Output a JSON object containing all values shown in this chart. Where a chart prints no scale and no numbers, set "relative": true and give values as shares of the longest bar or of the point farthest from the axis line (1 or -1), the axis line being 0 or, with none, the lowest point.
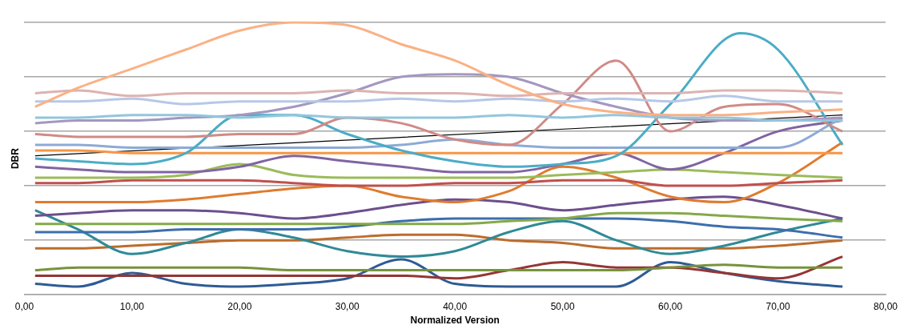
{
  "chart_data": {
    "type": "line",
    "xlabel": "Normalized Version",
    "ylabel": "DBR",
    "relative": true,
    "grid": "y",
    "legend": false,
    "marker": "none",
    "line_style": "solid",
    "xlim": [
      0,
      80
    ],
    "xticks": [
      {
        "value": 0,
        "label": "0,00"
      },
      {
        "value": 10,
        "label": "10,00"
      },
      {
        "value": 20,
        "label": "20,00"
      },
      {
        "value": 30,
        "label": "30,00"
      },
      {
        "value": 40,
        "label": "40,00"
      },
      {
        "value": 50,
        "label": "50,00"
      },
      {
        "value": 60,
        "label": "60,00"
      },
      {
        "value": 70,
        "label": "70,00"
      },
      {
        "value": 80,
        "label": "80,00"
      }
    ],
    "x": [
      1,
      5,
      10,
      15,
      20,
      25,
      30,
      35,
      40,
      45,
      50,
      55,
      60,
      65,
      70,
      76
    ],
    "series": [
      {
        "color": "#fab185",
        "values": [
          0.69,
          0.76,
          0.83,
          0.9,
          0.97,
          1.0,
          0.99,
          0.92,
          0.86,
          0.77,
          0.7,
          0.67,
          0.66,
          0.66,
          0.67,
          0.68
        ]
      },
      {
        "color": "#dcb3b1",
        "values": [
          0.74,
          0.75,
          0.73,
          0.74,
          0.74,
          0.74,
          0.75,
          0.74,
          0.74,
          0.73,
          0.74,
          0.74,
          0.74,
          0.75,
          0.75,
          0.74
        ]
      },
      {
        "color": "#b6c8e6",
        "values": [
          0.71,
          0.71,
          0.72,
          0.7,
          0.71,
          0.71,
          0.71,
          0.72,
          0.71,
          0.72,
          0.71,
          0.72,
          0.71,
          0.73,
          0.71,
          0.71
        ]
      },
      {
        "color": "#93c6dc",
        "values": [
          0.65,
          0.65,
          0.66,
          0.66,
          0.65,
          0.66,
          0.65,
          0.65,
          0.65,
          0.66,
          0.65,
          0.66,
          0.65,
          0.65,
          0.64,
          0.64
        ]
      },
      {
        "color": "#a497c0",
        "values": [
          0.63,
          0.64,
          0.64,
          0.65,
          0.66,
          0.69,
          0.74,
          0.8,
          0.81,
          0.8,
          0.74,
          0.69,
          0.65,
          0.64,
          0.64,
          0.65
        ]
      },
      {
        "color": "#d08b87",
        "values": [
          0.59,
          0.58,
          0.58,
          0.58,
          0.59,
          0.59,
          0.65,
          0.63,
          0.57,
          0.55,
          0.7,
          0.86,
          0.6,
          0.69,
          0.7,
          0.6
        ]
      },
      {
        "color": "#4bacc6",
        "x": [
          1,
          5,
          10,
          15,
          20,
          25,
          30,
          35,
          40,
          45,
          50,
          55,
          60,
          66.5,
          70,
          76
        ],
        "values": [
          0.5,
          0.49,
          0.48,
          0.52,
          0.66,
          0.66,
          0.59,
          0.53,
          0.49,
          0.47,
          0.48,
          0.51,
          0.7,
          0.96,
          0.9,
          0.55
        ]
      },
      {
        "color": "#8eaad6",
        "values": [
          0.55,
          0.55,
          0.54,
          0.54,
          0.54,
          0.54,
          0.54,
          0.55,
          0.57,
          0.55,
          0.54,
          0.54,
          0.54,
          0.54,
          0.54,
          0.65
        ]
      },
      {
        "color": "#f79646",
        "values": [
          0.53,
          0.53,
          0.52,
          0.52,
          0.52,
          0.52,
          0.52,
          0.52,
          0.52,
          0.52,
          0.52,
          0.52,
          0.52,
          0.52,
          0.52,
          0.52
        ]
      },
      {
        "color": "#000000",
        "x": [
          1,
          76
        ],
        "values": [
          0.51,
          0.66
        ]
      },
      {
        "color": "#8064a2",
        "values": [
          0.47,
          0.46,
          0.45,
          0.45,
          0.47,
          0.51,
          0.49,
          0.47,
          0.45,
          0.45,
          0.48,
          0.52,
          0.46,
          0.52,
          0.6,
          0.64
        ]
      },
      {
        "color": "#9bbb59",
        "values": [
          0.43,
          0.43,
          0.43,
          0.44,
          0.48,
          0.44,
          0.43,
          0.43,
          0.43,
          0.43,
          0.44,
          0.45,
          0.46,
          0.45,
          0.44,
          0.43
        ]
      },
      {
        "color": "#c0504d",
        "values": [
          0.41,
          0.41,
          0.42,
          0.42,
          0.42,
          0.41,
          0.4,
          0.4,
          0.41,
          0.41,
          0.42,
          0.42,
          0.4,
          0.4,
          0.41,
          0.42
        ]
      },
      {
        "color": "#e07b2e",
        "values": [
          0.34,
          0.34,
          0.34,
          0.35,
          0.37,
          0.39,
          0.4,
          0.36,
          0.34,
          0.38,
          0.47,
          0.43,
          0.36,
          0.34,
          0.41,
          0.56
        ]
      },
      {
        "color": "#6c4f8e",
        "values": [
          0.29,
          0.3,
          0.31,
          0.31,
          0.3,
          0.28,
          0.3,
          0.33,
          0.35,
          0.34,
          0.31,
          0.33,
          0.35,
          0.36,
          0.33,
          0.28
        ]
      },
      {
        "color": "#84a94a",
        "values": [
          0.26,
          0.26,
          0.26,
          0.26,
          0.26,
          0.26,
          0.26,
          0.26,
          0.26,
          0.27,
          0.28,
          0.3,
          0.3,
          0.29,
          0.28,
          0.27
        ]
      },
      {
        "color": "#3d6eac",
        "values": [
          0.23,
          0.23,
          0.23,
          0.24,
          0.24,
          0.24,
          0.25,
          0.27,
          0.28,
          0.28,
          0.28,
          0.28,
          0.27,
          0.25,
          0.24,
          0.21
        ]
      },
      {
        "color": "#2f8a96",
        "values": [
          0.31,
          0.24,
          0.15,
          0.19,
          0.24,
          0.21,
          0.16,
          0.14,
          0.16,
          0.23,
          0.27,
          0.2,
          0.15,
          0.18,
          0.23,
          0.28
        ]
      },
      {
        "color": "#bd6c2c",
        "values": [
          0.17,
          0.17,
          0.18,
          0.19,
          0.2,
          0.2,
          0.21,
          0.22,
          0.22,
          0.2,
          0.19,
          0.17,
          0.17,
          0.17,
          0.18,
          0.2
        ]
      },
      {
        "color": "#77933c",
        "values": [
          0.09,
          0.1,
          0.1,
          0.1,
          0.1,
          0.09,
          0.09,
          0.09,
          0.09,
          0.09,
          0.09,
          0.09,
          0.1,
          0.11,
          0.1,
          0.1
        ]
      },
      {
        "color": "#943634",
        "values": [
          0.07,
          0.07,
          0.07,
          0.07,
          0.07,
          0.07,
          0.07,
          0.07,
          0.06,
          0.09,
          0.12,
          0.1,
          0.1,
          0.08,
          0.06,
          0.14
        ]
      },
      {
        "color": "#2e5b94",
        "values": [
          0.04,
          0.03,
          0.08,
          0.04,
          0.03,
          0.04,
          0.06,
          0.13,
          0.04,
          0.03,
          0.03,
          0.03,
          0.12,
          0.08,
          0.05,
          0.03
        ]
      }
    ]
  }
}
